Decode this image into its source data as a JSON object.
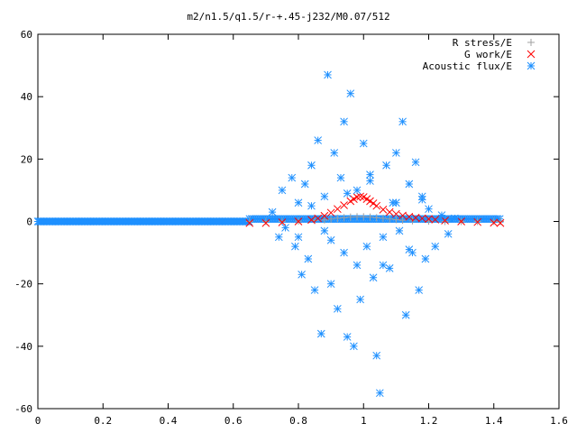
{
  "chart_data": {
    "type": "scatter",
    "title": "m2/n1.5/q1.5/r-+.45-j232/M0.07/512",
    "xlabel": "",
    "ylabel": "",
    "xlim": [
      0,
      1.6
    ],
    "ylim": [
      -60,
      60
    ],
    "xticks": [
      "0",
      "0.2",
      "0.4",
      "0.6",
      "0.8",
      "1",
      "1.2",
      "1.4",
      "1.6"
    ],
    "yticks": [
      "60",
      "40",
      "20",
      "0",
      "-20",
      "-40",
      "-60"
    ],
    "grid": false,
    "legend_position": "top-right",
    "series": [
      {
        "name": "R stress/E",
        "color": "#a0a0a0",
        "marker": "plus",
        "note_x_range": [
          0.65,
          1.42
        ],
        "x": [
          0.65,
          0.7,
          0.75,
          0.8,
          0.85,
          0.88,
          0.9,
          0.92,
          0.94,
          0.96,
          0.98,
          1.0,
          1.02,
          1.04,
          1.06,
          1.08,
          1.1,
          1.12,
          1.15,
          1.2,
          1.25,
          1.3,
          1.35,
          1.4,
          1.42
        ],
        "y": [
          0.0,
          0.0,
          0.0,
          0.1,
          0.3,
          0.5,
          0.8,
          1.0,
          1.2,
          1.4,
          1.5,
          1.5,
          1.4,
          1.2,
          1.0,
          0.8,
          0.6,
          0.4,
          0.2,
          0.1,
          0.0,
          0.0,
          0.0,
          0.0,
          0.0
        ]
      },
      {
        "name": "G work/E",
        "color": "#ff0000",
        "marker": "cross",
        "x": [
          0.65,
          0.7,
          0.75,
          0.8,
          0.84,
          0.86,
          0.88,
          0.9,
          0.92,
          0.94,
          0.96,
          0.97,
          0.98,
          0.99,
          1.0,
          1.01,
          1.02,
          1.03,
          1.04,
          1.06,
          1.08,
          1.1,
          1.12,
          1.14,
          1.16,
          1.18,
          1.2,
          1.22,
          1.25,
          1.3,
          1.35,
          1.4,
          1.42
        ],
        "y": [
          -0.5,
          -0.5,
          -0.3,
          0.0,
          0.5,
          1.0,
          1.8,
          2.8,
          4.0,
          5.2,
          6.5,
          7.2,
          7.8,
          8.0,
          7.8,
          7.2,
          6.5,
          5.8,
          5.0,
          3.8,
          3.0,
          2.4,
          1.9,
          1.5,
          1.2,
          1.0,
          0.8,
          0.6,
          0.3,
          0.0,
          -0.2,
          -0.4,
          -0.5
        ]
      },
      {
        "name": "Acoustic flux/E",
        "color": "#1e90ff",
        "marker": "star",
        "x": [
          0.72,
          0.74,
          0.75,
          0.76,
          0.78,
          0.79,
          0.8,
          0.81,
          0.82,
          0.83,
          0.84,
          0.85,
          0.86,
          0.87,
          0.88,
          0.88,
          0.89,
          0.9,
          0.91,
          0.92,
          0.93,
          0.94,
          0.94,
          0.95,
          0.96,
          0.97,
          0.98,
          0.99,
          1.0,
          1.01,
          1.02,
          1.03,
          1.04,
          1.05,
          1.06,
          1.07,
          1.08,
          1.09,
          1.1,
          1.11,
          1.12,
          1.13,
          1.14,
          1.15,
          1.16,
          1.17,
          1.18,
          1.19,
          1.2,
          1.22,
          1.24,
          1.26,
          1.28,
          0.8,
          0.84,
          0.9,
          0.95,
          0.98,
          1.02,
          1.06,
          1.1,
          1.14,
          1.18
        ],
        "y": [
          3,
          -5,
          10,
          -2,
          14,
          -8,
          6,
          -17,
          12,
          -12,
          18,
          -22,
          26,
          -36,
          8,
          -3,
          47,
          -20,
          22,
          -28,
          14,
          -10,
          32,
          -37,
          41,
          -40,
          10,
          -25,
          25,
          -8,
          15,
          -18,
          -43,
          -55,
          -5,
          18,
          -15,
          6,
          22,
          -3,
          32,
          -30,
          12,
          -10,
          19,
          -22,
          8,
          -12,
          4,
          -8,
          2,
          -4,
          1,
          -5,
          5,
          -6,
          9,
          -14,
          13,
          -14,
          6,
          -9,
          7
        ]
      }
    ]
  }
}
